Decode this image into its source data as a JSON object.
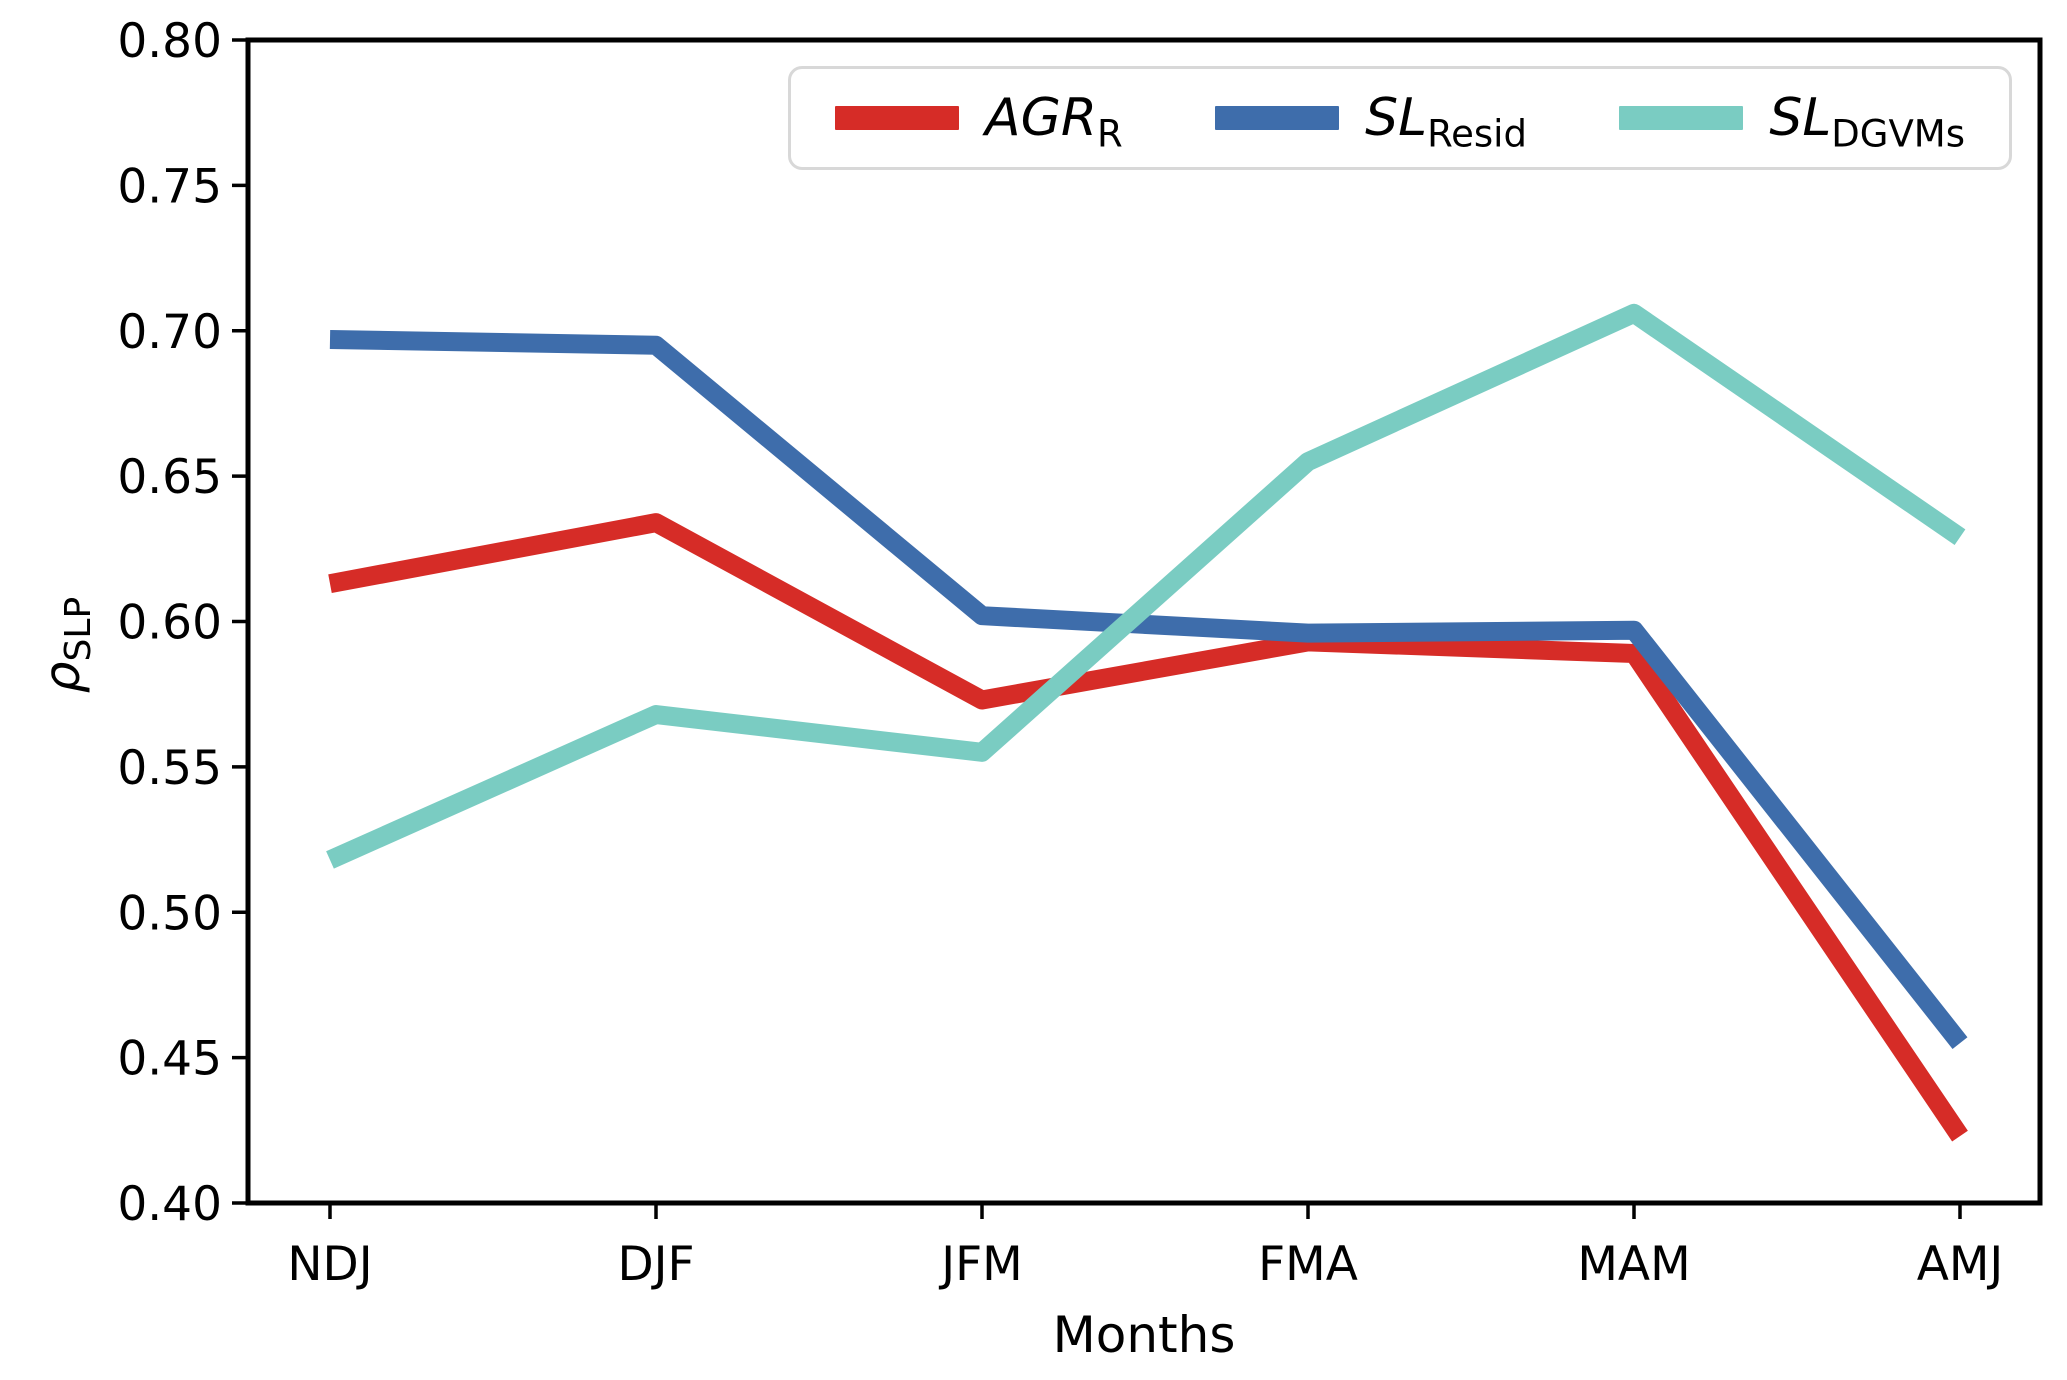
{
  "chart_data": {
    "type": "line",
    "title": "",
    "xlabel": "Months",
    "ylabel_main": "ρ",
    "ylabel_sub": "SLP",
    "categories": [
      "NDJ",
      "DJF",
      "JFM",
      "FMA",
      "MAM",
      "AMJ"
    ],
    "series": [
      {
        "name_main": "AGR",
        "name_sub": "R",
        "color": "#d62c27",
        "values": [
          0.613,
          0.634,
          0.573,
          0.593,
          0.589,
          0.423
        ]
      },
      {
        "name_main": "SL",
        "name_sub": "Resid",
        "color": "#3e6dab",
        "values": [
          0.697,
          0.695,
          0.602,
          0.596,
          0.597,
          0.455
        ]
      },
      {
        "name_main": "SL",
        "name_sub": "DGVMs",
        "color": "#7accc2",
        "values": [
          0.518,
          0.568,
          0.555,
          0.655,
          0.706,
          0.629
        ]
      }
    ],
    "ylim": [
      0.4,
      0.8
    ],
    "yticks": [
      "0.40",
      "0.45",
      "0.50",
      "0.55",
      "0.60",
      "0.65",
      "0.70",
      "0.75",
      "0.80"
    ],
    "grid": false,
    "legend_position": "top-center-inside",
    "axis_color": "#000000",
    "background": "#ffffff"
  }
}
